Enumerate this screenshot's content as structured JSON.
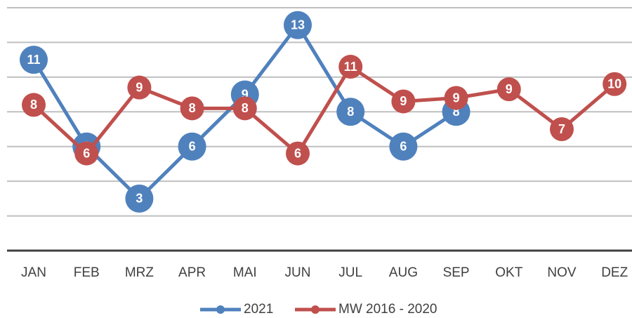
{
  "chart_data": {
    "type": "line",
    "categories": [
      "JAN",
      "FEB",
      "MRZ",
      "APR",
      "MAI",
      "JUN",
      "JUL",
      "AUG",
      "SEP",
      "OKT",
      "NOV",
      "DEZ"
    ],
    "series": [
      {
        "name": "2021",
        "color": "#4f81bd",
        "values": [
          11,
          6,
          3,
          6,
          9,
          13,
          8,
          6,
          8,
          null,
          null,
          null
        ]
      },
      {
        "name": "MW 2016 - 2020",
        "color": "#c0504d",
        "values": [
          8.4,
          5.6,
          9.4,
          8.2,
          8.2,
          5.6,
          10.6,
          8.6,
          8.8,
          9.3,
          7.0,
          9.6
        ],
        "value_labels": [
          "8",
          "6",
          "9",
          "8",
          "8",
          "6",
          "11",
          "9",
          "9",
          "9",
          "7",
          "10"
        ]
      }
    ],
    "ylim": [
      0,
      14
    ],
    "yticks": [
      0,
      2,
      4,
      6,
      8,
      10,
      12,
      14
    ],
    "grid": true,
    "legend": "bottom"
  }
}
